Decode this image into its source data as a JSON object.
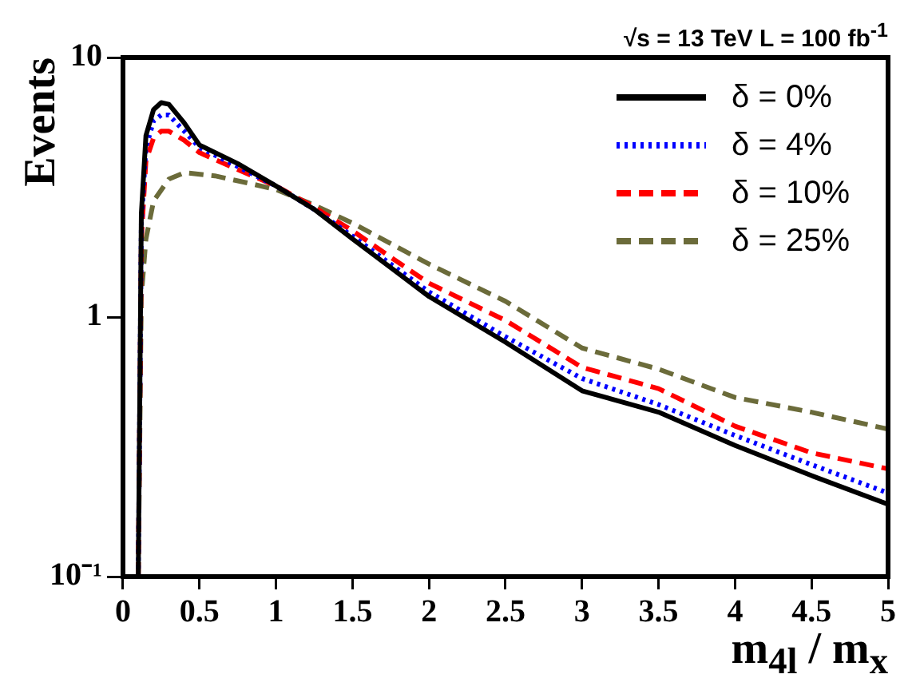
{
  "chart_data": {
    "type": "line",
    "xlabel": "m$_{4l}$ / m$_{x}$",
    "ylabel": "Events",
    "annotations": [
      "√s = 13 TeV  L = 100 fb$^{-1}$"
    ],
    "log": "y",
    "grid": false,
    "legend": "top right",
    "marker": "none",
    "xlim": [
      0,
      5
    ],
    "xticks": [
      {
        "value": 0,
        "label": "0"
      },
      0.5,
      1,
      1.5,
      2,
      2.5,
      3,
      3.5,
      4,
      4.5,
      5
    ],
    "ylim": [
      0.1,
      10
    ],
    "yticks": [
      {
        "value": 0.1,
        "label": "10⁻¹"
      },
      1,
      10
    ],
    "series": [
      {
        "name": "δ = 0%",
        "color": "#000000",
        "line_style": "solid",
        "x": [
          0.1,
          0.12,
          0.15,
          0.2,
          0.25,
          0.3,
          0.4,
          0.5,
          0.75,
          1,
          1.25,
          1.5,
          1.75,
          2,
          2.5,
          3,
          3.5,
          4,
          4.5,
          5
        ],
        "values": [
          0.1,
          2.5,
          5,
          6.3,
          6.7,
          6.6,
          5.6,
          4.6,
          3.9,
          3.2,
          2.6,
          2.0,
          1.55,
          1.2,
          0.8,
          0.52,
          0.43,
          0.32,
          0.245,
          0.19
        ]
      },
      {
        "name": "δ = 4%",
        "color": "#0000ff",
        "line_style": "dotted",
        "x": [
          0.1,
          0.12,
          0.15,
          0.2,
          0.25,
          0.3,
          0.4,
          0.5,
          0.75,
          1,
          1.25,
          1.5,
          1.75,
          2,
          2.5,
          3,
          3.5,
          4,
          4.5,
          5
        ],
        "values": [
          0.1,
          2.3,
          4.5,
          5.7,
          6.0,
          6.0,
          5.2,
          4.5,
          3.8,
          3.2,
          2.6,
          2.05,
          1.6,
          1.25,
          0.84,
          0.58,
          0.46,
          0.35,
          0.27,
          0.21
        ]
      },
      {
        "name": "δ = 10%",
        "color": "#ff0000",
        "line_style": "dashed",
        "x": [
          0.1,
          0.12,
          0.15,
          0.2,
          0.25,
          0.3,
          0.4,
          0.5,
          0.75,
          1,
          1.25,
          1.5,
          1.75,
          2,
          2.5,
          3,
          3.5,
          4,
          4.5,
          5
        ],
        "values": [
          0.1,
          2,
          4,
          4.9,
          5.2,
          5.2,
          4.8,
          4.3,
          3.7,
          3.2,
          2.65,
          2.15,
          1.7,
          1.35,
          0.97,
          0.64,
          0.53,
          0.38,
          0.3,
          0.26
        ]
      },
      {
        "name": "δ = 25%",
        "color": "#6b6b3a",
        "line_style": "dashed",
        "x": [
          0.1,
          0.12,
          0.15,
          0.2,
          0.3,
          0.4,
          0.6,
          0.8,
          1,
          1.25,
          1.5,
          2,
          2.5,
          3,
          3.5,
          4,
          4.5,
          5
        ],
        "values": [
          0.1,
          1.2,
          2.0,
          2.8,
          3.4,
          3.6,
          3.5,
          3.3,
          3.1,
          2.7,
          2.3,
          1.6,
          1.15,
          0.76,
          0.63,
          0.49,
          0.43,
          0.37
        ]
      }
    ]
  }
}
